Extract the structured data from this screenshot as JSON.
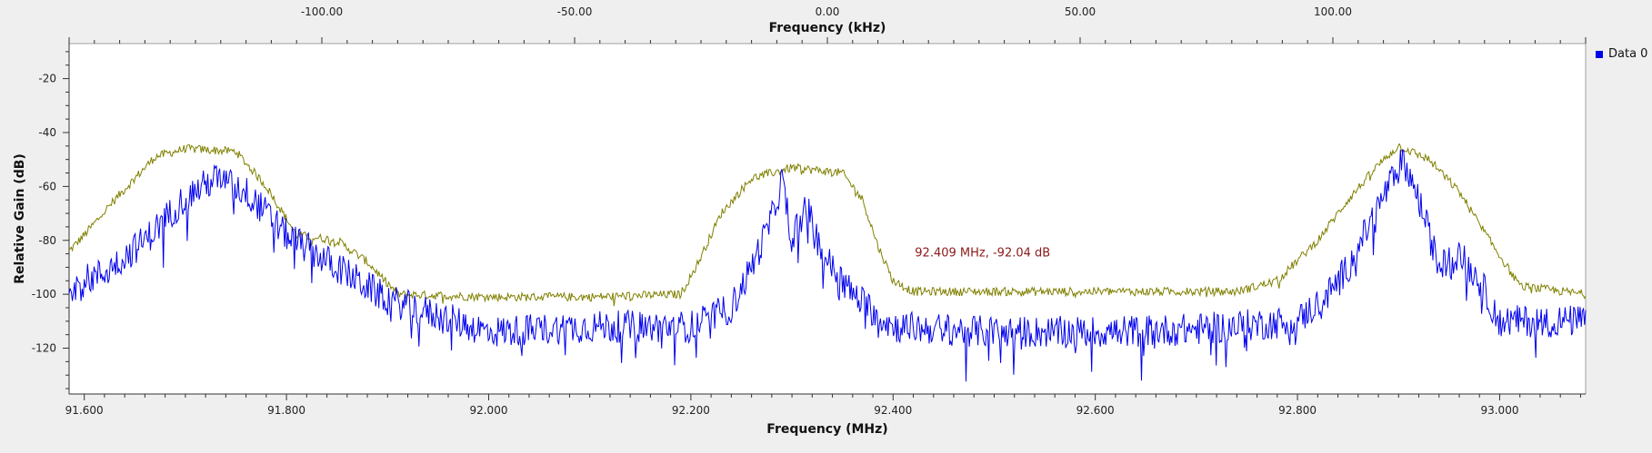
{
  "chart_data": {
    "type": "line",
    "xlabel": "Frequency (MHz)",
    "x2label": "Frequency (kHz)",
    "ylabel": "Relative Gain (dB)",
    "xlim": [
      91.585,
      93.085
    ],
    "ylim": [
      -137,
      -7
    ],
    "x_ticks": [
      "91.600",
      "91.800",
      "92.000",
      "92.200",
      "92.400",
      "92.600",
      "92.800",
      "93.000"
    ],
    "x2_ticks": [
      "-100.00",
      "-50.00",
      "0.00",
      "50.00",
      "100.00"
    ],
    "x2_tick_values": [
      -100,
      -50,
      0,
      50,
      100
    ],
    "x2lim": [
      -150,
      150
    ],
    "y_ticks": [
      -20,
      -40,
      -60,
      -80,
      -100,
      -120
    ],
    "grid": false,
    "legend_position": "top-right",
    "colors": {
      "data0": "#0000ee",
      "max_hold": "#808000",
      "marker": "#8b1a1a"
    },
    "series": [
      {
        "name": "Data 0",
        "role": "spectrum"
      },
      {
        "role": "max-hold"
      }
    ],
    "spectrum_envelope": [
      [
        91.585,
        -97
      ],
      [
        91.62,
        -92
      ],
      [
        91.66,
        -80
      ],
      [
        91.7,
        -64
      ],
      [
        91.73,
        -57
      ],
      [
        91.76,
        -62
      ],
      [
        91.8,
        -78
      ],
      [
        91.85,
        -90
      ],
      [
        91.9,
        -102
      ],
      [
        92.0,
        -114
      ],
      [
        92.1,
        -112
      ],
      [
        92.2,
        -112
      ],
      [
        92.24,
        -105
      ],
      [
        92.26,
        -90
      ],
      [
        92.28,
        -72
      ],
      [
        92.29,
        -58
      ],
      [
        92.3,
        -78
      ],
      [
        92.315,
        -68
      ],
      [
        92.33,
        -85
      ],
      [
        92.36,
        -100
      ],
      [
        92.4,
        -112
      ],
      [
        92.5,
        -114
      ],
      [
        92.6,
        -114
      ],
      [
        92.7,
        -113
      ],
      [
        92.8,
        -110
      ],
      [
        92.83,
        -100
      ],
      [
        92.85,
        -90
      ],
      [
        92.87,
        -75
      ],
      [
        92.89,
        -60
      ],
      [
        92.905,
        -50
      ],
      [
        92.92,
        -65
      ],
      [
        92.94,
        -90
      ],
      [
        92.96,
        -85
      ],
      [
        92.98,
        -95
      ],
      [
        93.0,
        -110
      ],
      [
        93.085,
        -110
      ]
    ],
    "maxhold_envelope": [
      [
        91.585,
        -84
      ],
      [
        91.6,
        -78
      ],
      [
        91.63,
        -65
      ],
      [
        91.67,
        -49
      ],
      [
        91.7,
        -46
      ],
      [
        91.75,
        -47
      ],
      [
        91.78,
        -60
      ],
      [
        91.81,
        -78
      ],
      [
        91.85,
        -80
      ],
      [
        91.88,
        -88
      ],
      [
        91.91,
        -100
      ],
      [
        92.0,
        -101
      ],
      [
        92.1,
        -101
      ],
      [
        92.19,
        -100
      ],
      [
        92.205,
        -90
      ],
      [
        92.23,
        -70
      ],
      [
        92.26,
        -57
      ],
      [
        92.3,
        -53
      ],
      [
        92.35,
        -55
      ],
      [
        92.37,
        -65
      ],
      [
        92.385,
        -82
      ],
      [
        92.4,
        -95
      ],
      [
        92.42,
        -99
      ],
      [
        92.6,
        -99
      ],
      [
        92.74,
        -99
      ],
      [
        92.78,
        -95
      ],
      [
        92.82,
        -80
      ],
      [
        92.85,
        -65
      ],
      [
        92.88,
        -52
      ],
      [
        92.9,
        -45
      ],
      [
        92.93,
        -50
      ],
      [
        92.96,
        -62
      ],
      [
        92.99,
        -80
      ],
      [
        93.02,
        -97
      ],
      [
        93.085,
        -100
      ]
    ],
    "annotations": [
      {
        "text": "92.409 MHz, -92.04 dB",
        "x": 92.409,
        "y": -92.04
      }
    ]
  },
  "legend": {
    "label": "Data 0"
  }
}
